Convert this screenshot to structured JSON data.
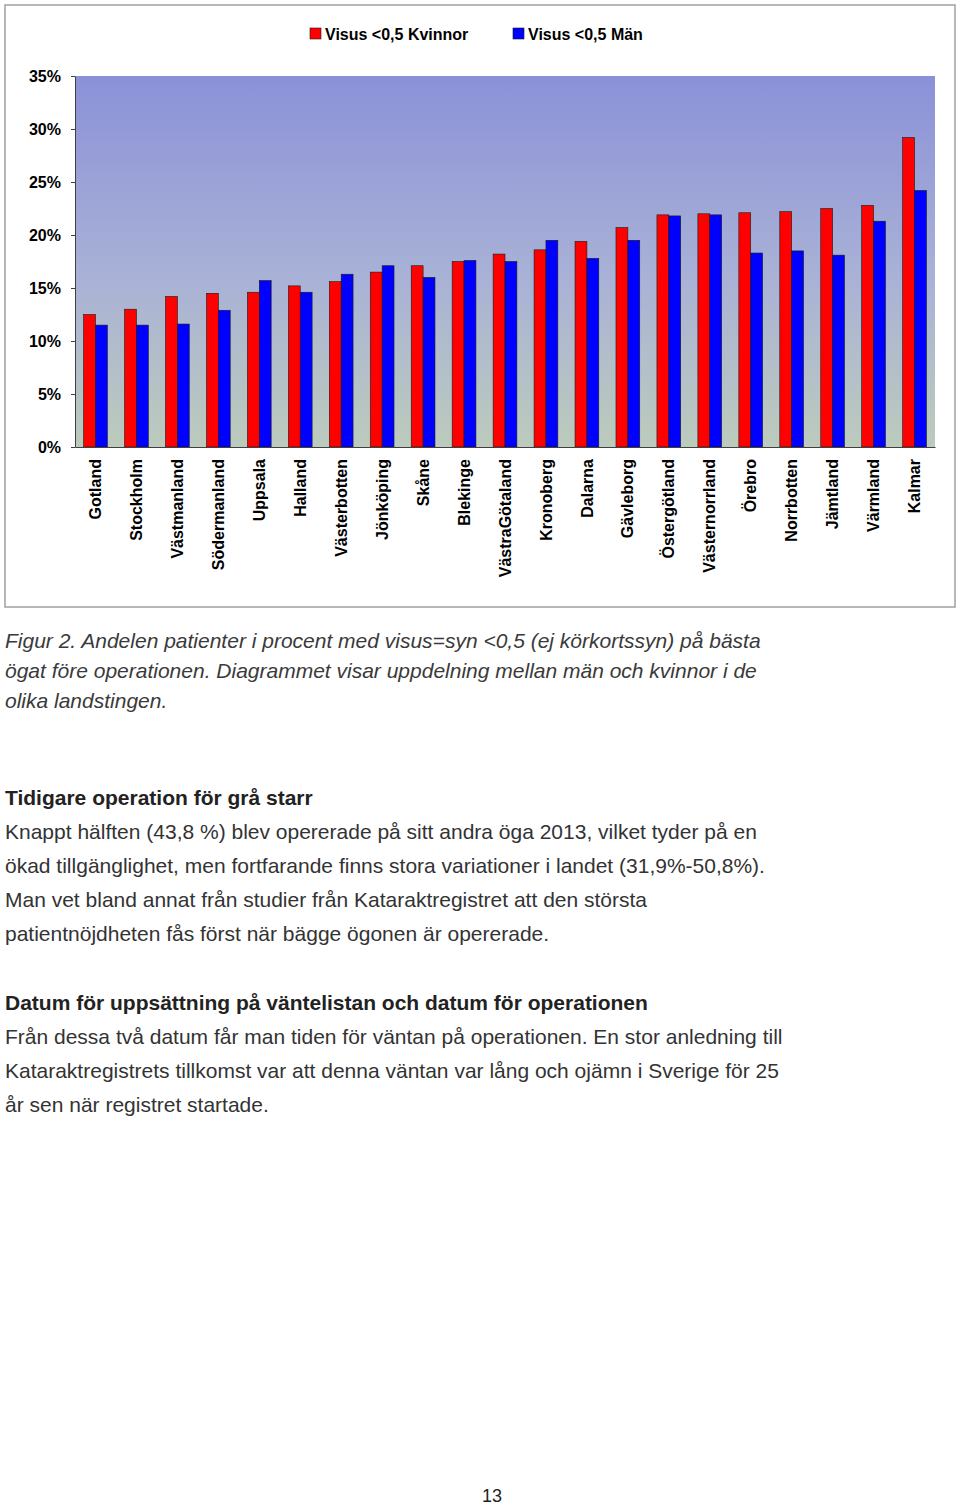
{
  "chart_data": {
    "type": "bar",
    "categories": [
      "Gotland",
      "Stockholm",
      "Västmanland",
      "Södermanland",
      "Uppsala",
      "Halland",
      "Västerbotten",
      "Jönköping",
      "Skåne",
      "Blekinge",
      "VästraGötaland",
      "Kronoberg",
      "Dalarna",
      "Gävleborg",
      "Östergötland",
      "Västernorrland",
      "Örebro",
      "Norrbotten",
      "Jämtland",
      "Värmland",
      "Kalmar"
    ],
    "series": [
      {
        "name": "Visus <0,5 Kvinnor",
        "color": "#ff0000",
        "values": [
          12.5,
          13.0,
          14.2,
          14.5,
          14.6,
          15.2,
          15.6,
          16.5,
          17.1,
          17.5,
          18.2,
          18.6,
          19.4,
          20.7,
          21.9,
          22.0,
          22.1,
          22.2,
          22.5,
          22.8,
          29.2
        ]
      },
      {
        "name": "Visus <0,5 Män",
        "color": "#0000ff",
        "values": [
          11.5,
          11.5,
          11.6,
          12.9,
          15.7,
          14.6,
          16.3,
          17.1,
          16.0,
          17.6,
          17.5,
          19.5,
          17.8,
          19.5,
          21.8,
          21.9,
          18.3,
          18.5,
          18.1,
          21.3,
          24.2
        ]
      }
    ],
    "ylim": [
      0,
      35
    ],
    "yticks": [
      {
        "value": 0,
        "label": "0%"
      },
      {
        "value": 5,
        "label": "5%"
      },
      {
        "value": 10,
        "label": "10%"
      },
      {
        "value": 15,
        "label": "15%"
      },
      {
        "value": 20,
        "label": "20%"
      },
      {
        "value": 25,
        "label": "25%"
      },
      {
        "value": 30,
        "label": "30%"
      },
      {
        "value": 35,
        "label": "35%"
      }
    ],
    "grid": false,
    "legend": "top"
  },
  "caption": [
    "Figur 2. Andelen patienter i procent med visus=syn <0,5 (ej körkortssyn) på bästa",
    "ögat före operationen. Diagrammet visar uppdelning mellan män och kvinnor i de",
    "olika landstingen."
  ],
  "sections": [
    {
      "heading": "Tidigare operation för grå starr",
      "lines": [
        "Knappt hälften (43,8 %) blev opererade på sitt andra öga 2013, vilket tyder på en",
        "ökad tillgänglighet, men fortfarande finns stora variationer i landet (31,9%-50,8%).",
        "Man vet bland annat från studier från Kataraktregistret att den största",
        "patientnöjdheten fås först när bägge ögonen är opererade."
      ]
    },
    {
      "heading": "Datum för uppsättning på väntelistan och datum för operationen",
      "lines": [
        "Från dessa två datum får man tiden för väntan på operationen. En stor anledning till",
        "Kataraktregistrets tillkomst var att denna väntan var lång och ojämn i Sverige för 25",
        "år sen när registret startade."
      ]
    }
  ],
  "page_number": "13"
}
